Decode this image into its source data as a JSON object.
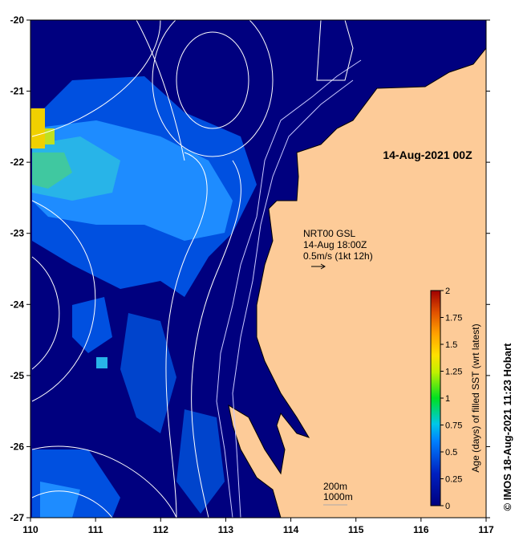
{
  "map": {
    "date_label": "14-Aug-2021 00Z",
    "current_legend": {
      "line1": "NRT00 GSL",
      "line2": "14-Aug 18:00Z",
      "line3": "0.5m/s (1kt 12h)"
    },
    "contour_legend": {
      "line1": "200m",
      "line2": "1000m"
    },
    "credit": "© IMOS 18-Aug-2021 11:23 Hobart",
    "lon_ticks": [
      "110",
      "111",
      "112",
      "113",
      "114",
      "115",
      "116",
      "117"
    ],
    "lat_ticks": [
      "-20",
      "-21",
      "-22",
      "-23",
      "-24",
      "-25",
      "-26",
      "-27"
    ],
    "colorbar": {
      "label": "Age (days) of filled SST (wrt latest)",
      "ticks": [
        "0",
        "0.25",
        "0.5",
        "0.75",
        "1",
        "1.25",
        "1.5",
        "1.75",
        "2"
      ],
      "min": 0,
      "max": 2
    },
    "colors": {
      "ocean": "#00007f",
      "land": "#fdcb98",
      "contour": "#ffffff"
    }
  }
}
